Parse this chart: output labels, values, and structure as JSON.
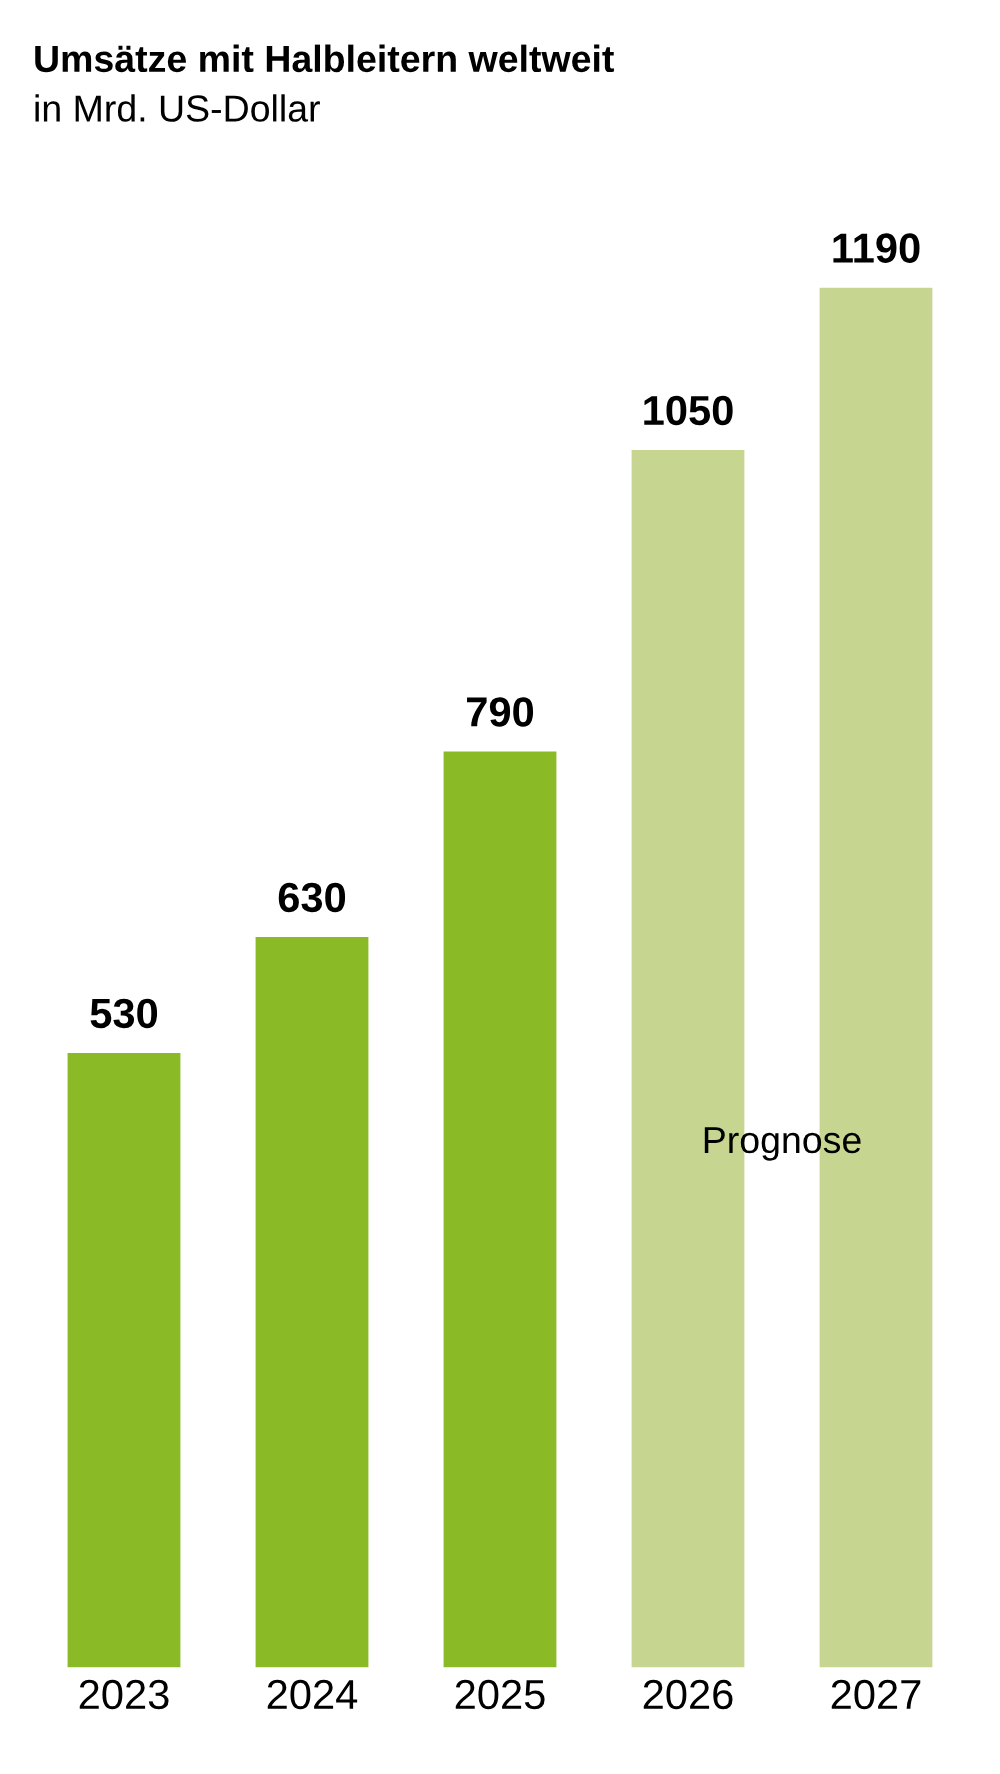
{
  "chart_data": {
    "type": "bar",
    "title": "Umsätze mit Halbleitern weltweit",
    "subtitle": "in Mrd. US-Dollar",
    "categories": [
      "2023",
      "2024",
      "2025",
      "2026",
      "2027"
    ],
    "values": [
      530,
      630,
      790,
      1050,
      1190
    ],
    "colors": [
      "#8abb26",
      "#8abb26",
      "#8abb26",
      "#c6d690",
      "#c6d690"
    ],
    "data_labels": true,
    "annotations": [
      "Prognose"
    ],
    "grid": false,
    "legend": false
  }
}
